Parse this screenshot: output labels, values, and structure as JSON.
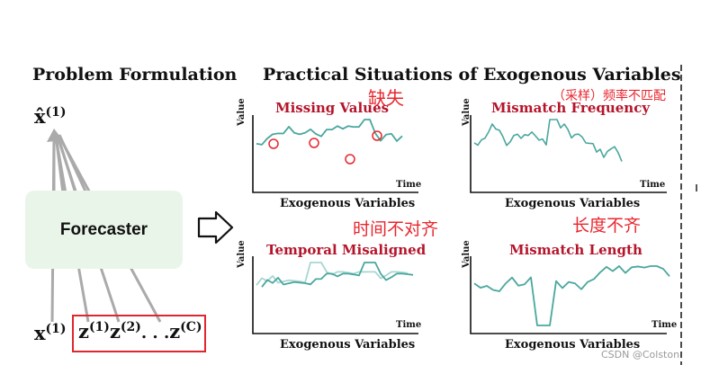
{
  "left_panel": {
    "title": "Problem Formulation",
    "output_symbol": "x̂",
    "output_superscript": "(1)",
    "forecaster_label": "Forecaster",
    "target_symbol": "x",
    "target_superscript": "(1)",
    "exogenous": {
      "z1": "z",
      "z1_sup": "(1)",
      "z2": "z",
      "z2_sup": "(2)",
      "ellipsis": ". . .",
      "zc": "z",
      "zc_sup": "(C)"
    }
  },
  "right_panel": {
    "title": "Practical Situations of Exogenous Variables",
    "panels": [
      {
        "title": "Missing Values",
        "annotation": "缺失",
        "y_label": "Value",
        "x_label": "Time",
        "caption": "Exogenous Variables"
      },
      {
        "title": "Mismatch Frequency",
        "annotation": "（采样）频率不匹配",
        "y_label": "Value",
        "x_label": "Time",
        "caption": "Exogenous Variables"
      },
      {
        "title": "Temporal Misaligned",
        "annotation": "时间不对齐",
        "y_label": "Value",
        "x_label": "Time",
        "caption": "Exogenous Variables"
      },
      {
        "title": "Mismatch Length",
        "annotation": "长度不齐",
        "y_label": "Value",
        "x_label": "Time",
        "caption": "Exogenous Variables"
      }
    ]
  },
  "watermark": "CSDN @Colston",
  "colors": {
    "series": "#4aa79e",
    "series_light": "#a9d6d1",
    "title_red": "#b5152b",
    "annotation_red": "#e8262e",
    "box_red": "#e0262e",
    "forecaster_bg": "#eaf5ea"
  }
}
